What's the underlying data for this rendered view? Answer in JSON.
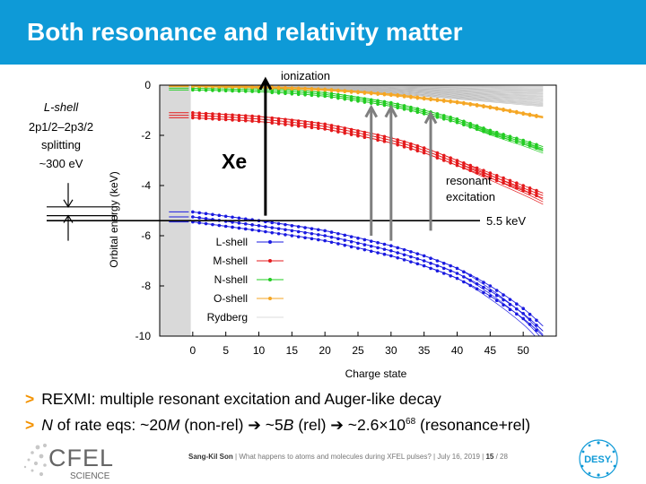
{
  "slide": {
    "title": "Both resonance and relativity matter",
    "bullets": [
      {
        "marker": ">",
        "parts": [
          "REXMI: multiple resonant excitation and Auger-like decay"
        ]
      },
      {
        "marker": ">",
        "parts": [
          "N",
          " of rate eqs: ~20",
          "M",
          " (non-rel) ➔ ~5",
          "B",
          " (rel) ➔ ~2.6×10",
          "68",
          " (resonance+rel)"
        ]
      }
    ],
    "footer": {
      "author": "Sang-Kil Son",
      "talk": "What happens to atoms and molecules during XFEL pulses?",
      "date": "July 16, 2019",
      "page": "15",
      "total": "/ 28"
    },
    "logos": {
      "cfel": "CFEL",
      "cfel_sub": "SCIENCE",
      "desy": "DESY."
    },
    "colors": {
      "title_bar": "#0e9ad7",
      "bullet_marker": "#f39200",
      "l_shell": "#1a1ae0",
      "m_shell": "#e41a1c",
      "n_shell": "#22cc22",
      "o_shell": "#f5a623",
      "rydberg": "#bbbbbb"
    }
  },
  "chart_data": {
    "type": "line",
    "xlabel": "Charge state",
    "ylabel": "Orbital energy (keV)",
    "xlim": [
      -5,
      55
    ],
    "ylim": [
      -10,
      0
    ],
    "xticks": [
      0,
      5,
      10,
      15,
      20,
      25,
      30,
      35,
      40,
      45,
      50
    ],
    "yticks": [
      0,
      -2,
      -4,
      -6,
      -8,
      -10
    ],
    "series": [
      {
        "name": "L-shell",
        "color": "#1a1ae0",
        "x": [
          0,
          10,
          20,
          30,
          35,
          40,
          45,
          50,
          53
        ],
        "y": [
          -5.05,
          -5.4,
          -5.8,
          -6.4,
          -6.8,
          -7.3,
          -8.0,
          -8.9,
          -9.6
        ]
      },
      {
        "name": "M-shell",
        "color": "#e41a1c",
        "x": [
          0,
          10,
          20,
          30,
          35,
          40,
          45,
          50,
          53
        ],
        "y": [
          -1.1,
          -1.25,
          -1.55,
          -2.1,
          -2.5,
          -3.0,
          -3.5,
          -4.0,
          -4.3
        ]
      },
      {
        "name": "N-shell",
        "color": "#22cc22",
        "x": [
          0,
          10,
          20,
          30,
          35,
          40,
          45,
          50,
          53
        ],
        "y": [
          -0.05,
          -0.12,
          -0.3,
          -0.7,
          -1.0,
          -1.35,
          -1.8,
          -2.2,
          -2.45
        ]
      },
      {
        "name": "O-shell",
        "color": "#f5a623",
        "x": [
          0,
          10,
          20,
          30,
          35,
          40,
          45,
          50,
          53
        ],
        "y": [
          0,
          -0.05,
          -0.15,
          -0.35,
          -0.5,
          -0.65,
          -0.85,
          -1.1,
          -1.25
        ]
      },
      {
        "name": "Rydberg",
        "color": "#bbbbbb",
        "x": [
          0,
          20,
          40,
          53
        ],
        "y": [
          0,
          -0.1,
          -0.35,
          -0.6
        ]
      }
    ],
    "legend_position": "bottom-left",
    "annotations": {
      "element": "Xe",
      "ionization": "ionization",
      "resonant": [
        "resonant",
        "excitation"
      ],
      "photon_energy": "5.5 keV",
      "splitting": [
        "L-shell",
        "2p1/2–2p3/2",
        "splitting",
        "~300 eV"
      ]
    }
  }
}
